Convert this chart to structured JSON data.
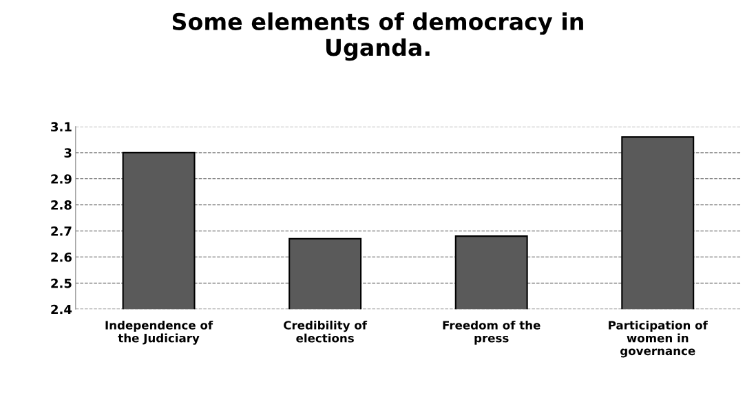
{
  "chart_data": {
    "type": "bar",
    "title": "Some elements of democracy in\nUganda.",
    "categories": [
      "Independence of\nthe Judiciary",
      "Credibility of\nelections",
      "Freedom of the\npress",
      "Participation of\nwomen in\ngovernance"
    ],
    "values": [
      3.0,
      2.67,
      2.68,
      3.06
    ],
    "color": "#5a5a5a",
    "ylim": [
      2.4,
      3.1
    ],
    "yticks": [
      {
        "value": 2.4,
        "label": "2.4"
      },
      {
        "value": 2.5,
        "label": "2.5"
      },
      {
        "value": 2.6,
        "label": "2.6"
      },
      {
        "value": 2.7,
        "label": "2.7"
      },
      {
        "value": 2.8,
        "label": "2.8"
      },
      {
        "value": 2.9,
        "label": "2.9"
      },
      {
        "value": 3.0,
        "label": "3"
      },
      {
        "value": 3.1,
        "label": "3.1"
      }
    ],
    "grid": "y"
  }
}
